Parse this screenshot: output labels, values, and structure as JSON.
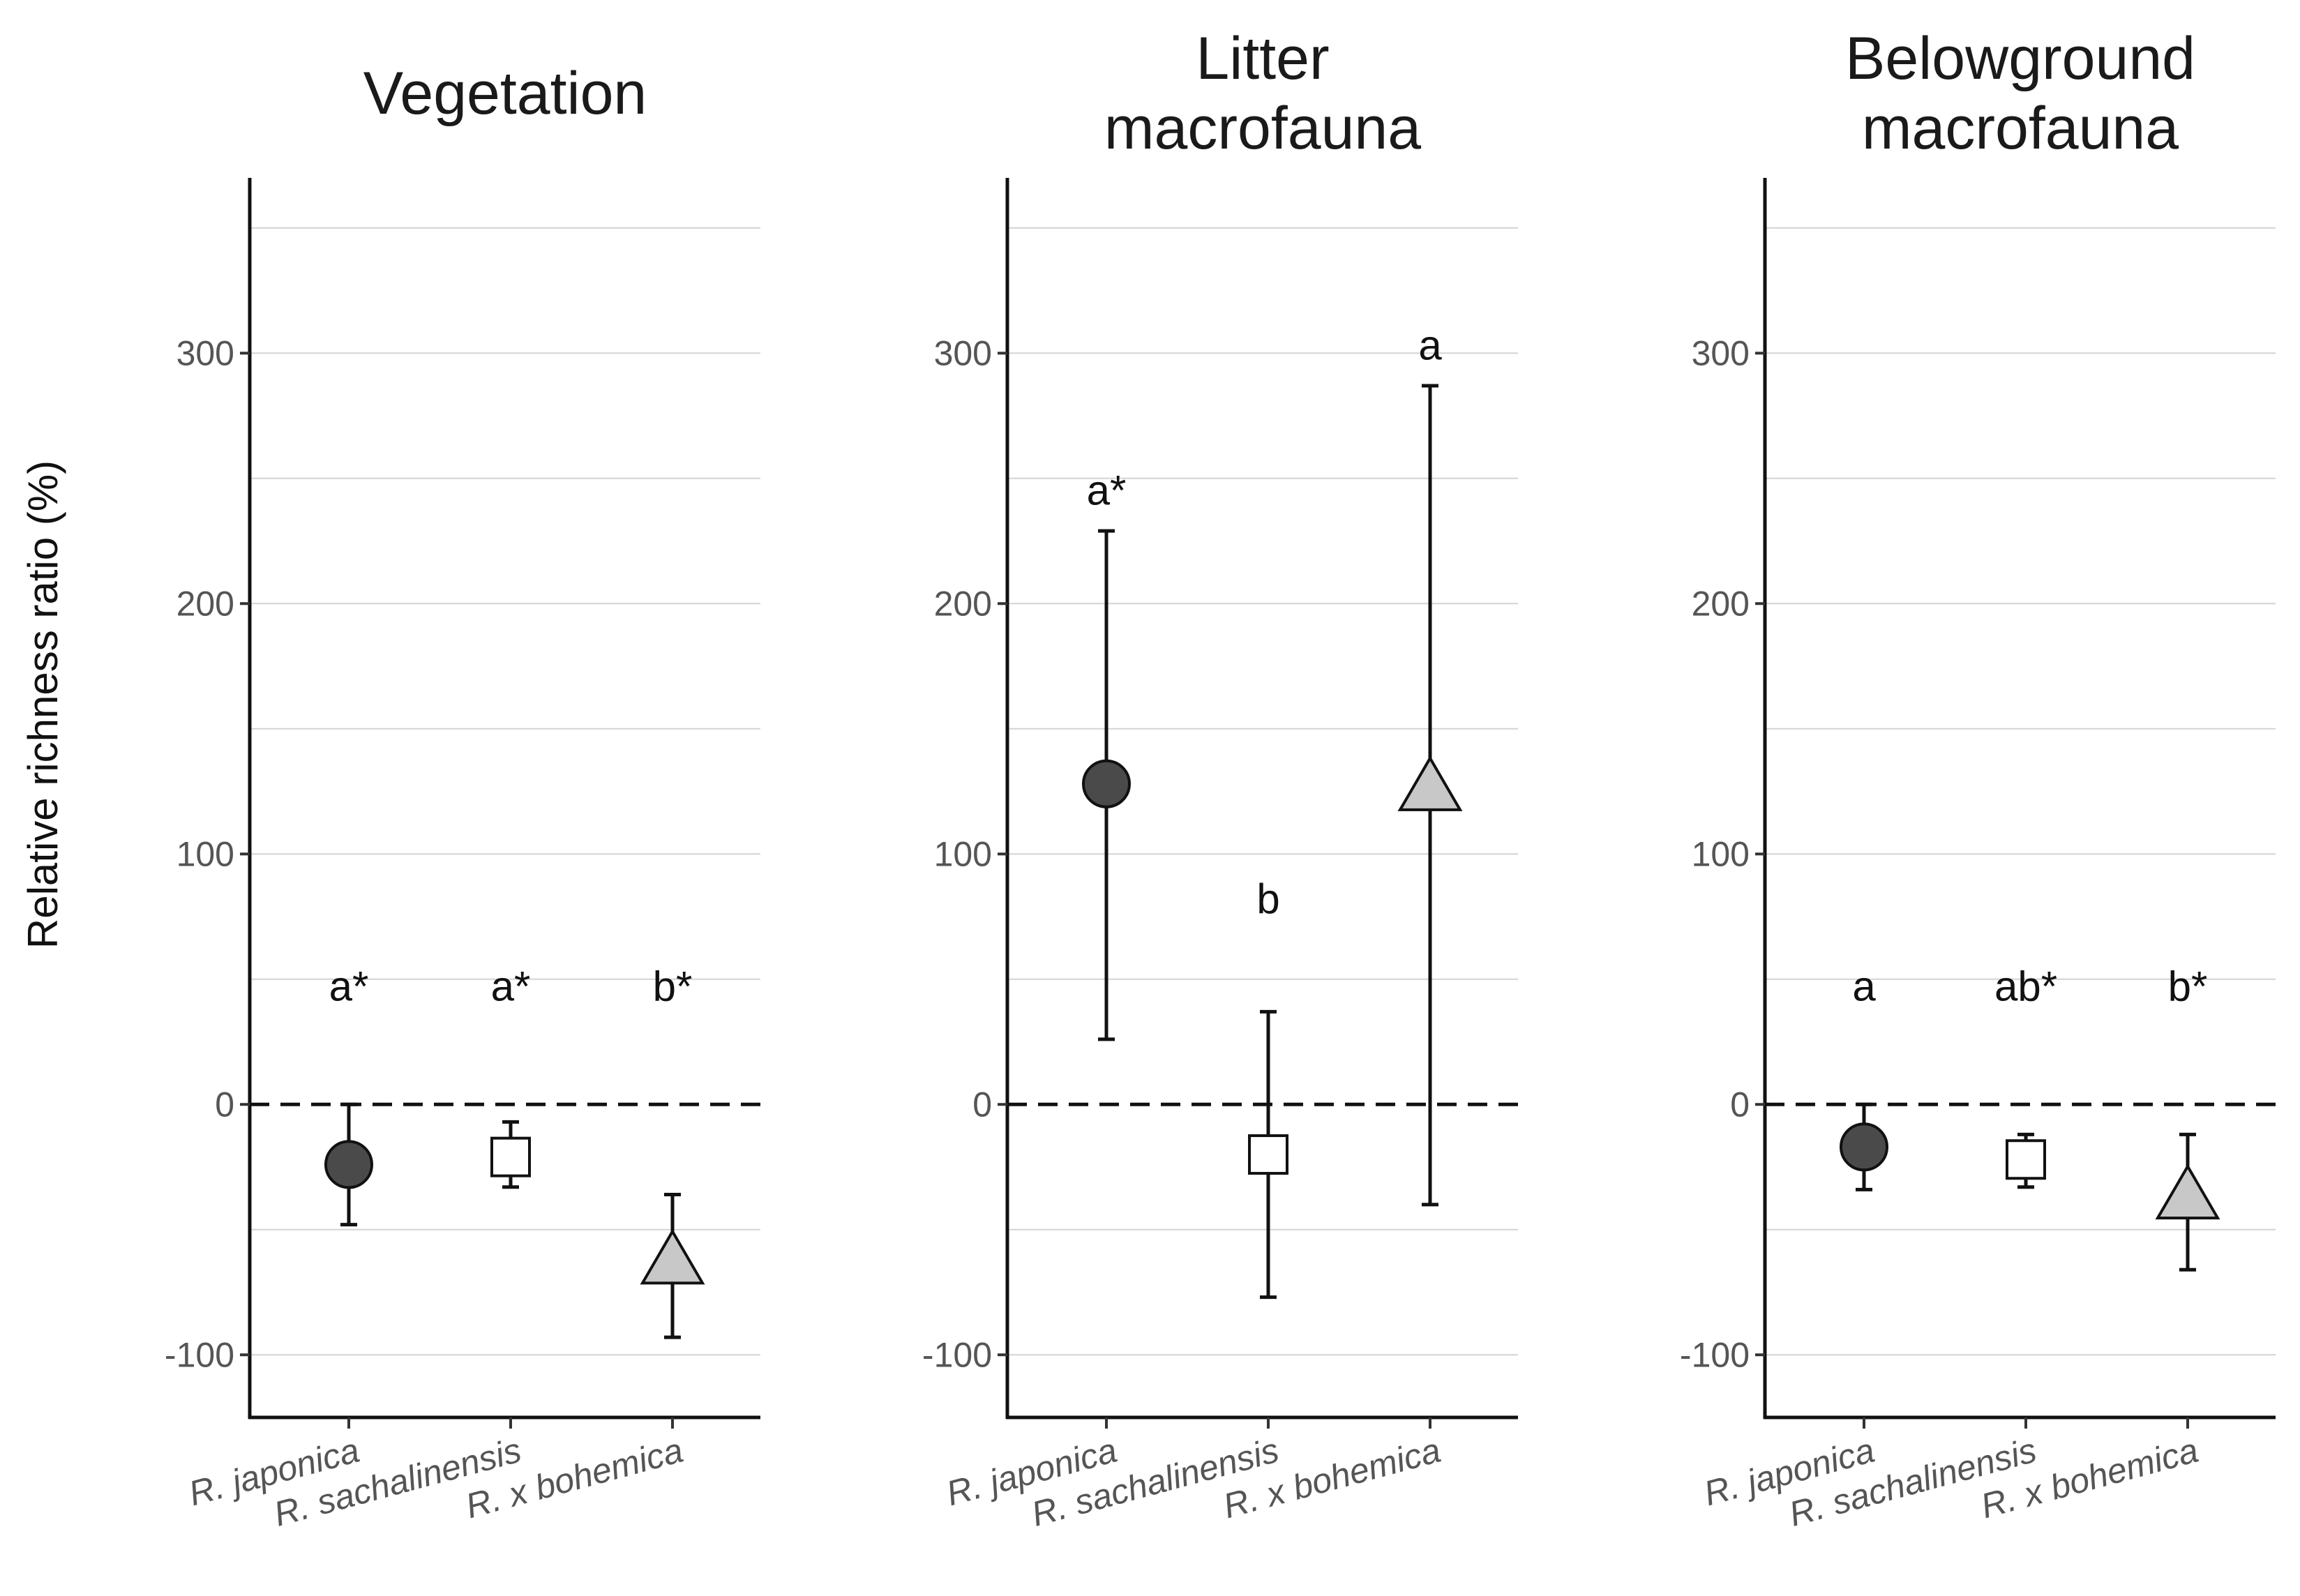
{
  "y_axis_label": "Relative richness ratio (%)",
  "chart_data": [
    {
      "type": "scatter",
      "title": [
        "Vegetation"
      ],
      "xlabel": "",
      "ylabel": "Relative richness ratio (%)",
      "ylim": [
        -125,
        370
      ],
      "yticks": [
        300,
        200,
        100,
        0,
        -100
      ],
      "ytick_labels": [
        "300",
        "200",
        "100",
        "0",
        "-100"
      ],
      "gridlines": [
        350,
        300,
        250,
        200,
        150,
        100,
        50,
        -50,
        -100
      ],
      "reference_line": 0,
      "categories": [
        "R. japonica",
        "R. sachalinensis",
        "R. x bohemica"
      ],
      "markers": [
        "circle",
        "square",
        "triangle"
      ],
      "fills": [
        "#4a4a4a",
        "#ffffff",
        "#c8c8c8"
      ],
      "values": [
        -24,
        -21,
        -63
      ],
      "lower": [
        -48,
        -33,
        -93
      ],
      "upper": [
        0,
        -7,
        -36
      ],
      "letters": [
        "a*",
        "a*",
        "b*"
      ],
      "letter_y": [
        47,
        47,
        47
      ]
    },
    {
      "type": "scatter",
      "title": [
        "Litter",
        "macrofauna"
      ],
      "xlabel": "",
      "ylabel": "",
      "ylim": [
        -125,
        370
      ],
      "yticks": [
        300,
        200,
        100,
        0,
        -100
      ],
      "ytick_labels": [
        "300",
        "200",
        "100",
        "0",
        "-100"
      ],
      "gridlines": [
        350,
        300,
        250,
        200,
        150,
        100,
        50,
        -50,
        -100
      ],
      "reference_line": 0,
      "categories": [
        "R. japonica",
        "R. sachalinensis",
        "R. x bohemica"
      ],
      "markers": [
        "circle",
        "square",
        "triangle"
      ],
      "fills": [
        "#4a4a4a",
        "#ffffff",
        "#c8c8c8"
      ],
      "values": [
        128,
        -20,
        126
      ],
      "lower": [
        26,
        -77,
        -40
      ],
      "upper": [
        229,
        37,
        287
      ],
      "letters": [
        "a*",
        "b",
        "a"
      ],
      "letter_y": [
        245,
        82,
        303
      ]
    },
    {
      "type": "scatter",
      "title": [
        "Belowground",
        "macrofauna"
      ],
      "xlabel": "",
      "ylabel": "",
      "ylim": [
        -125,
        370
      ],
      "yticks": [
        300,
        200,
        100,
        0,
        -100
      ],
      "ytick_labels": [
        "300",
        "200",
        "100",
        "0",
        "-100"
      ],
      "gridlines": [
        350,
        300,
        250,
        200,
        150,
        100,
        50,
        -50,
        -100
      ],
      "reference_line": 0,
      "categories": [
        "R. japonica",
        "R. sachalinensis",
        "R. x bohemica"
      ],
      "markers": [
        "circle",
        "square",
        "triangle"
      ],
      "fills": [
        "#4a4a4a",
        "#ffffff",
        "#c8c8c8"
      ],
      "values": [
        -17,
        -22,
        -37
      ],
      "lower": [
        -34,
        -33,
        -66
      ],
      "upper": [
        0,
        -12,
        -12
      ],
      "letters": [
        "a",
        "ab*",
        "b*"
      ],
      "letter_y": [
        47,
        47,
        47
      ]
    }
  ]
}
